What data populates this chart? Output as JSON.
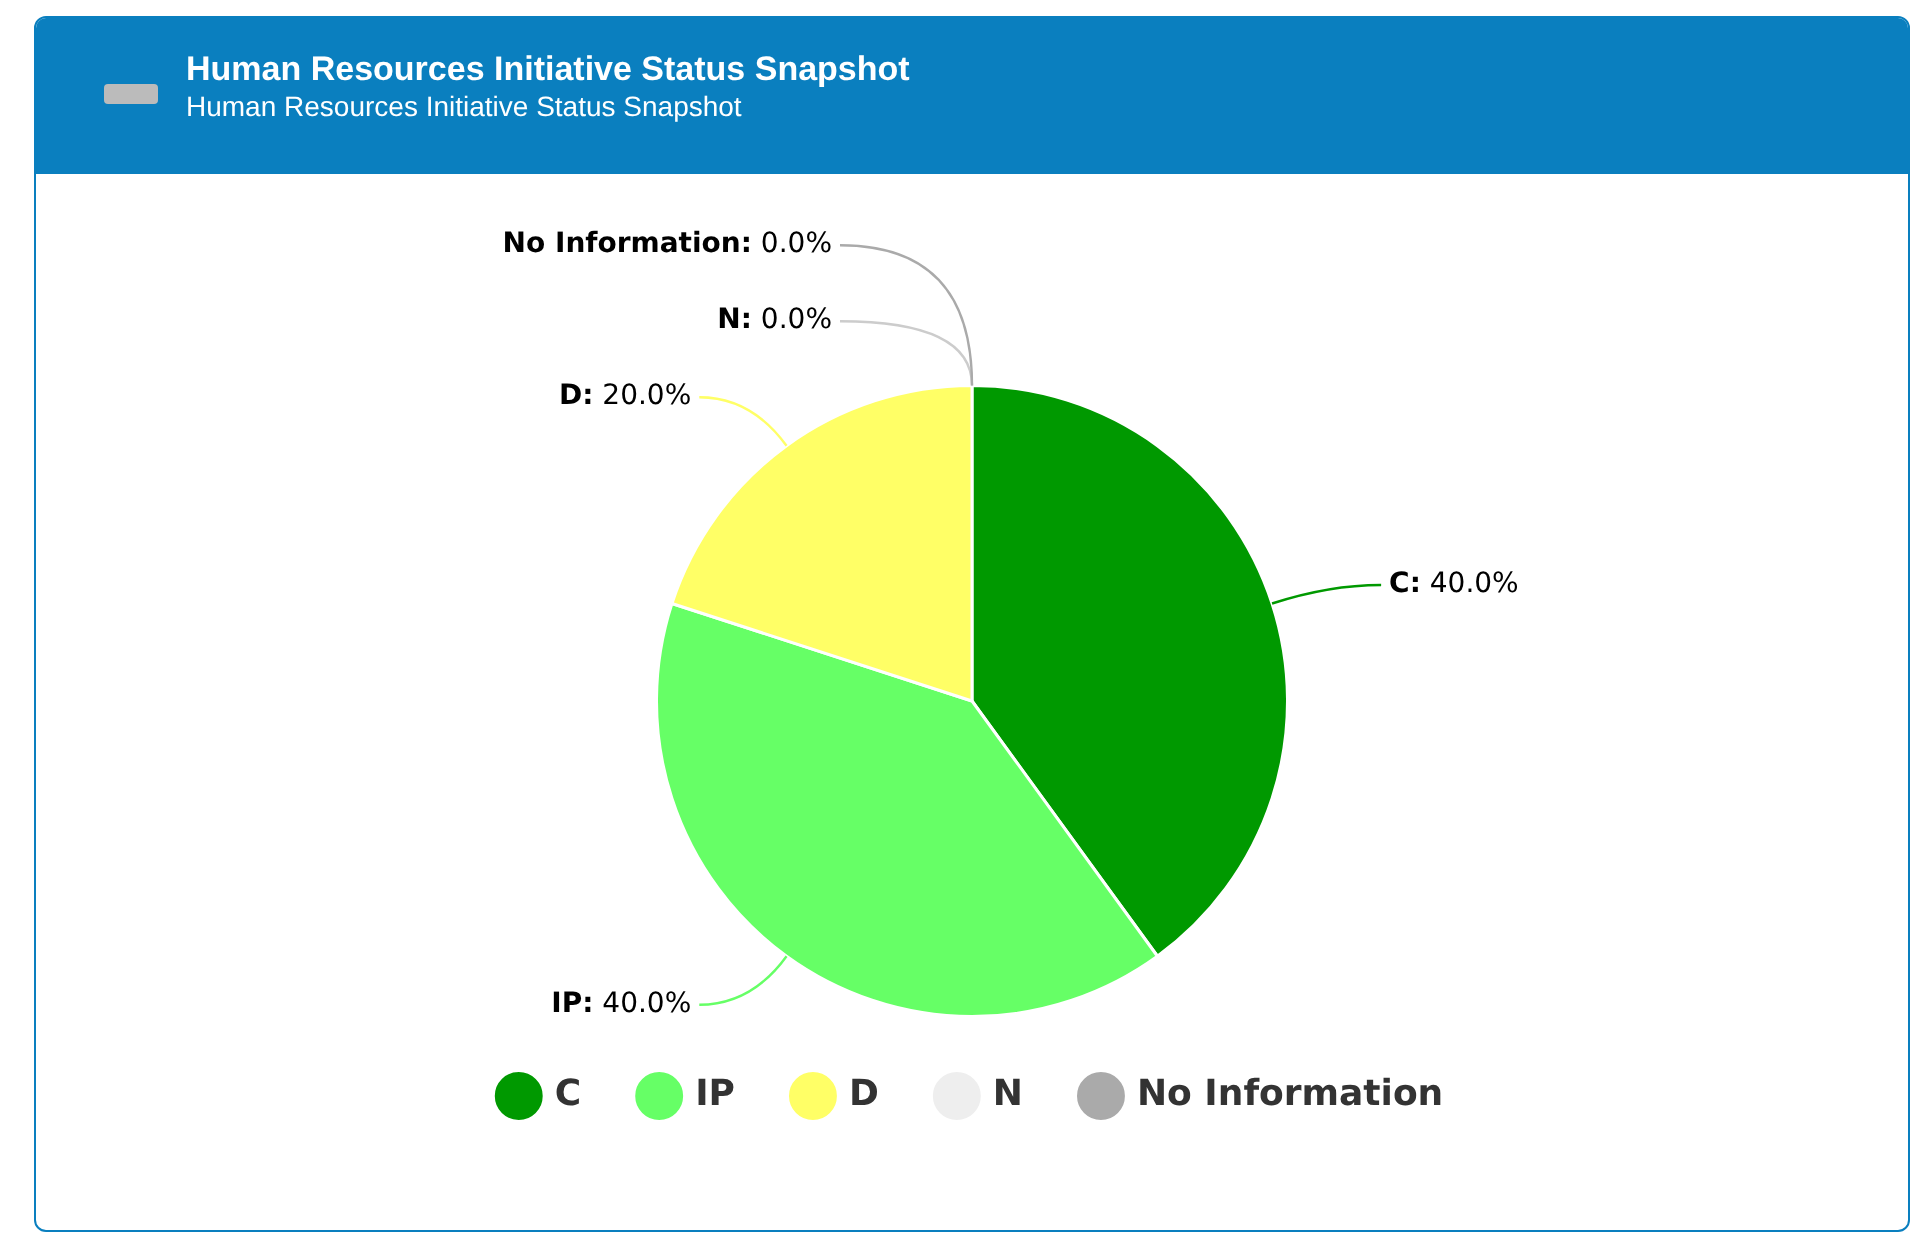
{
  "chart_data": {
    "type": "pie",
    "title": "Human Resources Initiative Status Snapshot",
    "subtitle": "Human Resources Initiative Status Snapshot",
    "categories": [
      "C",
      "IP",
      "D",
      "N",
      "No Information"
    ],
    "values": [
      40,
      40,
      20,
      0,
      0
    ],
    "colors": [
      "#009900",
      "#66ff66",
      "#ffff66",
      "#eeeeee",
      "#aaaaaa"
    ],
    "value_labels": [
      "C: 40.0%",
      "IP: 40.0%",
      "D: 20.0%",
      "N: 0.0%",
      "No Information: 0.0%"
    ],
    "legend": "bottom"
  }
}
